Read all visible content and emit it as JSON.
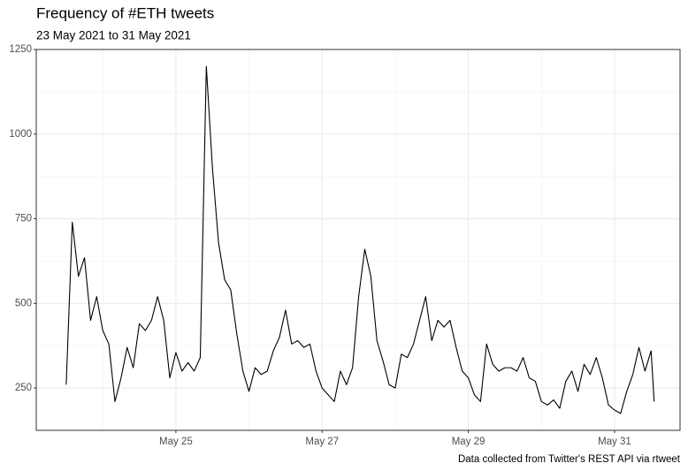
{
  "chart_data": {
    "type": "line",
    "title": "Frequency of #ETH tweets",
    "subtitle": "23 May 2021 to 31 May 2021",
    "caption": "Data collected from Twitter's REST API via rtweet",
    "x": [
      "2021-05-23T12:00",
      "2021-05-23T14:00",
      "2021-05-23T16:00",
      "2021-05-23T18:00",
      "2021-05-23T20:00",
      "2021-05-23T22:00",
      "2021-05-24T00:00",
      "2021-05-24T02:00",
      "2021-05-24T04:00",
      "2021-05-24T06:00",
      "2021-05-24T08:00",
      "2021-05-24T10:00",
      "2021-05-24T12:00",
      "2021-05-24T14:00",
      "2021-05-24T16:00",
      "2021-05-24T18:00",
      "2021-05-24T20:00",
      "2021-05-24T22:00",
      "2021-05-25T00:00",
      "2021-05-25T02:00",
      "2021-05-25T04:00",
      "2021-05-25T06:00",
      "2021-05-25T08:00",
      "2021-05-25T10:00",
      "2021-05-25T12:00",
      "2021-05-25T14:00",
      "2021-05-25T16:00",
      "2021-05-25T18:00",
      "2021-05-25T20:00",
      "2021-05-25T22:00",
      "2021-05-26T00:00",
      "2021-05-26T02:00",
      "2021-05-26T04:00",
      "2021-05-26T06:00",
      "2021-05-26T08:00",
      "2021-05-26T10:00",
      "2021-05-26T12:00",
      "2021-05-26T14:00",
      "2021-05-26T16:00",
      "2021-05-26T18:00",
      "2021-05-26T20:00",
      "2021-05-26T22:00",
      "2021-05-27T00:00",
      "2021-05-27T02:00",
      "2021-05-27T04:00",
      "2021-05-27T06:00",
      "2021-05-27T08:00",
      "2021-05-27T10:00",
      "2021-05-27T12:00",
      "2021-05-27T14:00",
      "2021-05-27T16:00",
      "2021-05-27T18:00",
      "2021-05-27T20:00",
      "2021-05-27T22:00",
      "2021-05-28T00:00",
      "2021-05-28T02:00",
      "2021-05-28T04:00",
      "2021-05-28T06:00",
      "2021-05-28T08:00",
      "2021-05-28T10:00",
      "2021-05-28T12:00",
      "2021-05-28T14:00",
      "2021-05-28T16:00",
      "2021-05-28T18:00",
      "2021-05-28T20:00",
      "2021-05-28T22:00",
      "2021-05-29T00:00",
      "2021-05-29T02:00",
      "2021-05-29T04:00",
      "2021-05-29T06:00",
      "2021-05-29T08:00",
      "2021-05-29T10:00",
      "2021-05-29T12:00",
      "2021-05-29T14:00",
      "2021-05-29T16:00",
      "2021-05-29T18:00",
      "2021-05-29T20:00",
      "2021-05-29T22:00",
      "2021-05-30T00:00",
      "2021-05-30T02:00",
      "2021-05-30T04:00",
      "2021-05-30T06:00",
      "2021-05-30T08:00",
      "2021-05-30T10:00",
      "2021-05-30T12:00",
      "2021-05-30T14:00",
      "2021-05-30T16:00",
      "2021-05-30T18:00",
      "2021-05-30T20:00",
      "2021-05-30T22:00",
      "2021-05-31T00:00",
      "2021-05-31T02:00",
      "2021-05-31T04:00",
      "2021-05-31T06:00",
      "2021-05-31T08:00",
      "2021-05-31T10:00",
      "2021-05-31T12:00",
      "2021-05-31T13:00"
    ],
    "values": [
      260,
      740,
      580,
      635,
      450,
      520,
      420,
      380,
      210,
      280,
      370,
      310,
      440,
      420,
      450,
      520,
      450,
      280,
      355,
      300,
      325,
      300,
      340,
      1200,
      900,
      680,
      570,
      540,
      410,
      300,
      240,
      310,
      290,
      300,
      360,
      400,
      480,
      380,
      390,
      370,
      380,
      300,
      250,
      230,
      210,
      300,
      260,
      310,
      520,
      660,
      580,
      390,
      330,
      260,
      250,
      350,
      340,
      380,
      450,
      520,
      390,
      450,
      430,
      450,
      370,
      300,
      280,
      230,
      210,
      380,
      320,
      300,
      310,
      310,
      300,
      340,
      280,
      270,
      210,
      200,
      215,
      190,
      270,
      300,
      240,
      320,
      290,
      340,
      280,
      200,
      185,
      175,
      240,
      290,
      370,
      300,
      360,
      210
    ],
    "color": "#000000",
    "xlim": [
      "2021-05-23T02:10",
      "2021-05-31T21:30"
    ],
    "xticks": [
      {
        "value": "2021-05-25T00:00",
        "label": "May 25"
      },
      {
        "value": "2021-05-27T00:00",
        "label": "May 27"
      },
      {
        "value": "2021-05-29T00:00",
        "label": "May 29"
      },
      {
        "value": "2021-05-31T00:00",
        "label": "May 31"
      }
    ],
    "ylim": [
      125,
      1250
    ],
    "yticks": [
      250,
      500,
      750,
      1000,
      1250
    ],
    "grid": true
  }
}
